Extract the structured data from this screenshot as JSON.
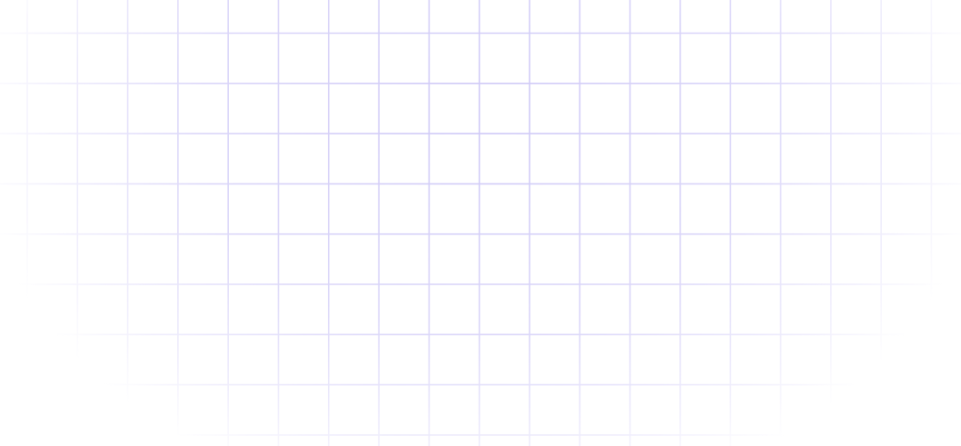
{
  "background": {
    "pattern": "grid",
    "line_color": "#cfc9f7",
    "fade": "radial"
  }
}
